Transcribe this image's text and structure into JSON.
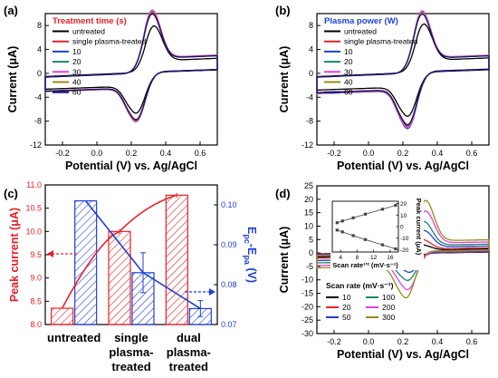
{
  "colors": {
    "untreated": "#000000",
    "single": "#e8202a",
    "s10": "#1f3fd6",
    "s20": "#14866d",
    "s30": "#e63ee0",
    "s40": "#9b8a16",
    "s60": "#12127a",
    "red": "#e8202a",
    "blue": "#1f3fd6",
    "gray": "#5a5a5a"
  },
  "chart_data": [
    {
      "panel": "(a)",
      "type": "line",
      "legend_title": "Treatment time (s)",
      "xlabel": "Potential (V) vs. Ag/AgCl",
      "ylabel": "Current (μA)",
      "xlim": [
        -0.3,
        0.7
      ],
      "ylim": [
        -12,
        10
      ],
      "xticks": [
        "-0.2",
        "0.0",
        "0.2",
        "0.4",
        "0.6"
      ],
      "yticks": [
        "-12",
        "-8",
        "-4",
        "0",
        "4",
        "8"
      ],
      "legend_placement": "top-left",
      "series": [
        {
          "name": "untreated",
          "ipa": 6.6,
          "ipc": -7.4,
          "epa": 0.33,
          "epc": 0.23,
          "key": "untreated"
        },
        {
          "name": "single plasma-treated",
          "ipa": 8.4,
          "ipc": -8.6,
          "epa": 0.32,
          "epc": 0.23,
          "key": "single"
        },
        {
          "name": "10",
          "ipa": 8.6,
          "ipc": -8.9,
          "epa": 0.32,
          "epc": 0.23,
          "key": "s10"
        },
        {
          "name": "20",
          "ipa": 8.8,
          "ipc": -9.0,
          "epa": 0.32,
          "epc": 0.23,
          "key": "s20"
        },
        {
          "name": "30",
          "ipa": 9.0,
          "ipc": -9.1,
          "epa": 0.32,
          "epc": 0.23,
          "key": "s30"
        },
        {
          "name": "40",
          "ipa": 8.7,
          "ipc": -8.9,
          "epa": 0.32,
          "epc": 0.23,
          "key": "s40"
        },
        {
          "name": "60",
          "ipa": 8.5,
          "ipc": -8.7,
          "epa": 0.32,
          "epc": 0.23,
          "key": "s60"
        }
      ]
    },
    {
      "panel": "(b)",
      "type": "line",
      "legend_title": "Plasma power (W)",
      "xlabel": "Potential (V) vs. Ag/AgCl",
      "ylabel": "Current (μA)",
      "xlim": [
        -0.3,
        0.7
      ],
      "ylim": [
        -12,
        10
      ],
      "xticks": [
        "-0.2",
        "0.0",
        "0.2",
        "0.4",
        "0.6"
      ],
      "yticks": [
        "-12",
        "-8",
        "-4",
        "0",
        "4",
        "8"
      ],
      "legend_placement": "top-left",
      "series": [
        {
          "name": "untreated",
          "ipa": 6.9,
          "ipc": -8.0,
          "epa": 0.32,
          "epc": 0.23,
          "key": "untreated"
        },
        {
          "name": "single plasma-treated",
          "ipa": 8.5,
          "ipc": -9.6,
          "epa": 0.31,
          "epc": 0.23,
          "key": "single"
        },
        {
          "name": "10",
          "ipa": 8.8,
          "ipc": -10.4,
          "epa": 0.31,
          "epc": 0.23,
          "key": "s10"
        },
        {
          "name": "20",
          "ipa": 8.7,
          "ipc": -10.0,
          "epa": 0.31,
          "epc": 0.23,
          "key": "s20"
        },
        {
          "name": "30",
          "ipa": 8.9,
          "ipc": -10.2,
          "epa": 0.31,
          "epc": 0.23,
          "key": "s30"
        },
        {
          "name": "40",
          "ipa": 8.6,
          "ipc": -9.9,
          "epa": 0.31,
          "epc": 0.23,
          "key": "s40"
        },
        {
          "name": "60",
          "ipa": 8.4,
          "ipc": -9.7,
          "epa": 0.31,
          "epc": 0.23,
          "key": "s60"
        }
      ]
    },
    {
      "panel": "(c)",
      "type": "bar",
      "categories": [
        "untreated",
        "single\nplasma-\ntreated",
        "dual\nplasma-\ntreated"
      ],
      "ylabel": "Peak current (μA)",
      "y2label": "E_pc-E_pa (V)",
      "ylim": [
        8.0,
        11.0
      ],
      "y2lim": [
        0.07,
        0.105
      ],
      "yticks": [
        "8.0",
        "8.5",
        "9.0",
        "9.5",
        "10.0",
        "10.5",
        "11.0"
      ],
      "y2ticks": [
        "0.07",
        "0.08",
        "0.09",
        "0.10"
      ],
      "series": [
        {
          "name": "Peak current",
          "axis": "left",
          "values": [
            8.35,
            10.0,
            10.78
          ],
          "errors": [
            0.0,
            0.05,
            0.05
          ],
          "key": "red"
        },
        {
          "name": "Epc-Epa",
          "axis": "right",
          "values": [
            0.101,
            0.083,
            0.074
          ],
          "errors": [
            0.0,
            0.005,
            0.002
          ],
          "key": "blue"
        }
      ]
    },
    {
      "panel": "(d)",
      "type": "line",
      "xlabel": "Potential (V) vs. Ag/AgCl",
      "ylabel": "Current (μA)",
      "xlim": [
        -0.3,
        0.7
      ],
      "ylim": [
        -30,
        25
      ],
      "xticks": [
        "-0.2",
        "0.0",
        "0.2",
        "0.4",
        "0.6"
      ],
      "yticks": [
        "-30",
        "-25",
        "-20",
        "-15",
        "-10",
        "-5",
        "0",
        "5",
        "10",
        "15",
        "20",
        "25"
      ],
      "legend_title": "Scan rate (mV·s⁻¹)",
      "legend_placement": "bottom-left",
      "series": [
        {
          "name": "10",
          "ipa": 2.2,
          "ipc": -2.5,
          "epa": 0.31,
          "epc": 0.24,
          "key": "untreated"
        },
        {
          "name": "20",
          "ipa": 4.0,
          "ipc": -4.5,
          "epa": 0.31,
          "epc": 0.24,
          "key": "single"
        },
        {
          "name": "50",
          "ipa": 7.0,
          "ipc": -8.0,
          "epa": 0.32,
          "epc": 0.24,
          "key": "s10"
        },
        {
          "name": "100",
          "ipa": 10.0,
          "ipc": -11.5,
          "epa": 0.32,
          "epc": 0.23,
          "key": "s20"
        },
        {
          "name": "200",
          "ipa": 13.5,
          "ipc": -15.5,
          "epa": 0.33,
          "epc": 0.23,
          "key": "s30"
        },
        {
          "name": "300",
          "ipa": 17.0,
          "ipc": -19.0,
          "epa": 0.33,
          "epc": 0.22,
          "key": "s40"
        }
      ],
      "inset": {
        "xlabel": "Scan rate¹′² (mV·s⁻¹)",
        "ylabel": "Peak current (μA)",
        "xticks": [
          "4",
          "8",
          "12",
          "16"
        ],
        "yticks": [
          "-20",
          "-10",
          "0",
          "10",
          "20"
        ],
        "xlim": [
          2,
          18
        ],
        "ylim": [
          -22,
          22
        ],
        "anodic": [
          [
            3.16,
            3.4
          ],
          [
            4.47,
            4.9
          ],
          [
            7.07,
            7.6
          ],
          [
            10.0,
            10.8
          ],
          [
            14.14,
            15.1
          ],
          [
            17.32,
            18.5
          ]
        ],
        "cathodic": [
          [
            3.16,
            -3.0
          ],
          [
            4.47,
            -4.6
          ],
          [
            7.07,
            -7.8
          ],
          [
            10.0,
            -11.2
          ],
          [
            14.14,
            -15.8
          ],
          [
            17.32,
            -19.3
          ]
        ]
      }
    }
  ],
  "labels": {
    "a": "(a)",
    "b": "(b)",
    "c": "(c)",
    "d": "(d)",
    "c_cat1": "untreated",
    "c_cat2a": "single",
    "c_cat2b": "plasma-",
    "c_cat2c": "treated",
    "c_cat3a": "dual",
    "c_cat3b": "plasma-",
    "c_cat3c": "treated",
    "c_ylabel": "Peak current (μA)",
    "c_y2label_main": "E",
    "c_y2label_pc": "pc",
    "c_y2label_mid": "-E",
    "c_y2label_pa": "pa",
    "c_y2label_unit": " (V)",
    "inset_x": "Scan rate¹′² (mV·s⁻¹)",
    "inset_y": "Peak current (μA)"
  }
}
